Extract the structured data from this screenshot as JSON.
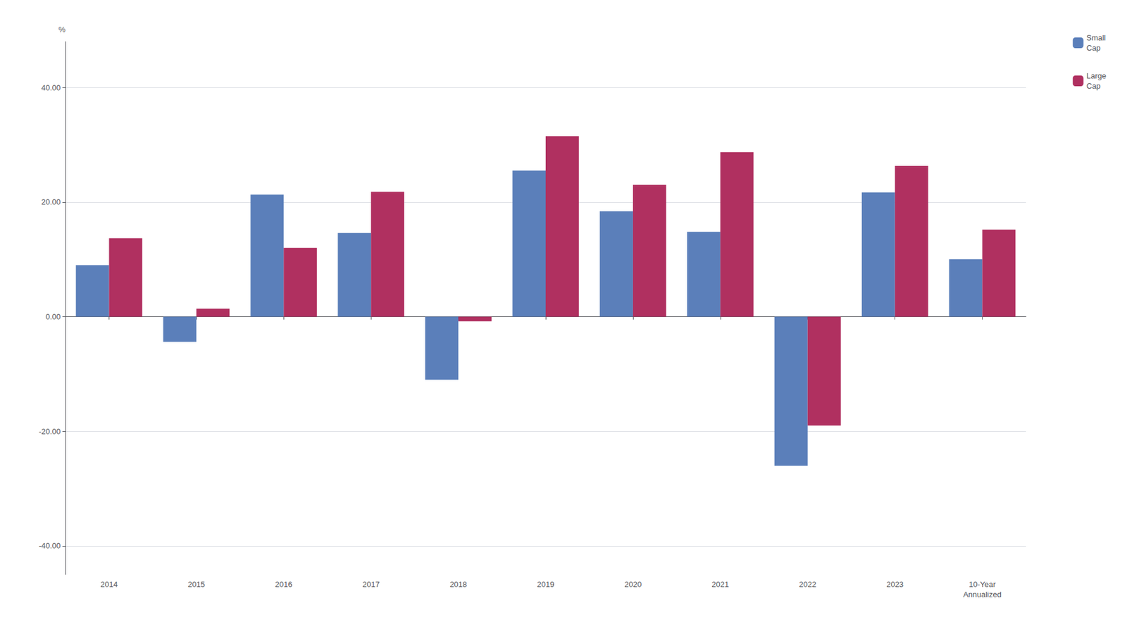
{
  "chart_data": {
    "type": "bar",
    "categories": [
      "2014",
      "2015",
      "2016",
      "2017",
      "2018",
      "2019",
      "2020",
      "2021",
      "2022",
      "2023",
      "10-Year\nAnnualized"
    ],
    "series": [
      {
        "name": "Small\nCap",
        "color": "#5b7fba",
        "values": [
          9.0,
          -4.4,
          21.3,
          14.6,
          -11.0,
          25.5,
          18.4,
          14.8,
          -26.0,
          21.7,
          10.0
        ]
      },
      {
        "name": "Large\nCap",
        "color": "#b03060",
        "values": [
          13.7,
          1.4,
          12.0,
          21.8,
          -0.8,
          31.5,
          23.0,
          28.7,
          -19.0,
          26.3,
          15.2
        ]
      }
    ],
    "ylabel": "%",
    "ylim": [
      -45,
      48
    ],
    "yticks": [
      {
        "value": -40.0,
        "label": "-40.00"
      },
      {
        "value": -20.0,
        "label": "-20.00"
      },
      {
        "value": 0.0,
        "label": "0.00"
      },
      {
        "value": 20.0,
        "label": "20.00"
      },
      {
        "value": 40.0,
        "label": "40.00"
      }
    ],
    "grid": true,
    "legend": "upper right"
  }
}
